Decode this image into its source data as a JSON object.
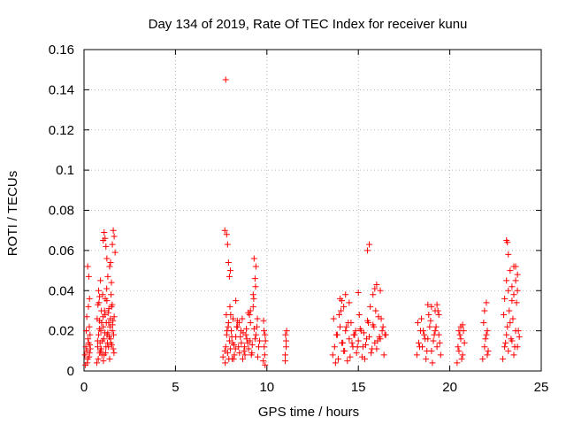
{
  "chart_data": {
    "type": "scatter",
    "title": "Day 134 of 2019, Rate Of TEC Index for receiver kunu",
    "xlabel": "GPS time / hours",
    "ylabel": "ROTI / TECUs",
    "xlim": [
      0,
      25
    ],
    "ylim": [
      0,
      0.16
    ],
    "x_ticks": [
      0,
      5,
      10,
      15,
      20,
      25
    ],
    "x_tick_labels": [
      "0",
      "5",
      "10",
      "15",
      "20",
      "25"
    ],
    "y_ticks": [
      0,
      0.02,
      0.04,
      0.06,
      0.08,
      0.1,
      0.12,
      0.14,
      0.16
    ],
    "y_tick_labels": [
      "0",
      "0.02",
      "0.04",
      "0.06",
      "0.08",
      "0.1",
      "0.12",
      "0.14",
      "0.16"
    ],
    "grid": true,
    "marker": "+",
    "marker_color": "#ff0000",
    "series": [
      {
        "x": [
          0.05,
          0.1,
          0.15,
          0.2,
          0.25,
          0.3,
          0.35,
          0.12,
          0.18,
          0.22,
          0.28,
          0.32,
          0.2,
          0.26,
          0.3,
          0.15,
          0.24,
          0.33,
          0.08,
          0.29,
          0.7,
          0.75,
          0.8,
          0.85,
          0.9,
          0.95,
          1.0,
          1.05,
          1.1,
          1.15,
          1.2,
          1.25,
          1.3,
          1.35,
          1.4,
          1.45,
          1.5,
          1.55,
          1.6,
          1.65,
          0.72,
          0.78,
          0.82,
          0.88,
          0.92,
          0.98,
          1.02,
          1.08,
          1.12,
          1.18,
          1.22,
          1.28,
          1.32,
          1.38,
          1.42,
          1.48,
          1.52,
          1.58,
          1.62,
          0.74,
          0.84,
          0.94,
          1.04,
          1.14,
          1.24,
          1.34,
          1.44,
          1.54,
          1.64,
          0.76,
          0.86,
          0.96,
          1.06,
          1.16,
          1.26,
          1.36,
          1.46,
          1.56,
          1.1,
          1.15,
          1.2,
          1.25,
          1.6,
          1.65,
          1.7,
          1.3,
          1.05,
          1.55,
          0.8,
          1.4,
          1.5,
          1.45,
          0.9,
          0.85,
          7.6,
          7.75,
          7.8,
          7.85,
          7.9,
          7.95,
          8.0,
          8.05,
          8.1,
          8.15,
          8.2,
          8.3,
          8.4,
          8.5,
          8.6,
          8.7,
          8.8,
          8.9,
          9.0,
          9.1,
          9.2,
          9.3,
          9.4,
          9.5,
          9.6,
          7.7,
          7.82,
          7.92,
          8.02,
          8.12,
          8.22,
          8.35,
          8.45,
          8.55,
          8.65,
          8.75,
          8.85,
          8.95,
          9.05,
          9.15,
          9.25,
          9.35,
          9.45,
          9.55,
          7.72,
          7.88,
          8.08,
          8.28,
          8.48,
          8.68,
          8.88,
          9.08,
          9.28,
          9.48,
          7.78,
          7.98,
          8.18,
          8.38,
          8.58,
          8.78,
          8.98,
          9.18,
          9.38,
          7.7,
          7.8,
          7.85,
          7.9,
          7.95,
          8.0,
          9.3,
          9.4,
          9.35,
          9.25,
          8.3,
          9.1,
          9.8,
          9.85,
          9.9,
          9.82,
          9.88,
          9.92,
          9.84,
          9.9,
          11.0,
          11.05,
          11.02,
          11.08,
          11.0,
          11.05,
          13.6,
          13.7,
          13.8,
          13.9,
          14.0,
          14.1,
          14.2,
          14.3,
          14.4,
          14.5,
          14.6,
          14.7,
          14.8,
          14.9,
          15.0,
          15.1,
          15.2,
          15.3,
          15.4,
          15.5,
          15.6,
          15.7,
          15.8,
          15.9,
          16.0,
          16.1,
          16.2,
          16.3,
          16.4,
          16.5,
          13.65,
          13.85,
          14.05,
          14.25,
          14.45,
          14.65,
          14.85,
          15.05,
          15.25,
          15.45,
          15.65,
          15.85,
          16.05,
          16.25,
          16.45,
          13.75,
          13.95,
          14.15,
          14.35,
          14.55,
          14.75,
          14.95,
          15.15,
          15.35,
          15.55,
          15.75,
          15.95,
          16.15,
          16.35,
          14.0,
          14.2,
          14.5,
          15.5,
          15.6,
          15.8,
          16.0,
          16.2,
          15.9,
          14.3,
          15.0,
          14.1,
          18.2,
          18.3,
          18.4,
          18.5,
          18.6,
          18.7,
          18.8,
          18.9,
          19.0,
          19.1,
          19.2,
          19.3,
          19.4,
          19.5,
          18.25,
          18.45,
          18.65,
          18.85,
          19.05,
          19.25,
          19.45,
          18.35,
          18.55,
          18.75,
          18.95,
          19.15,
          19.35,
          18.8,
          19.0,
          19.2,
          19.3,
          19.4,
          20.4,
          20.5,
          20.6,
          20.7,
          20.8,
          20.45,
          20.55,
          20.65,
          20.75,
          20.5,
          20.6,
          20.7,
          21.8,
          21.9,
          22.0,
          22.1,
          21.85,
          21.95,
          22.05,
          21.9,
          22.0,
          22.05,
          22.9,
          23.0,
          23.1,
          23.2,
          23.3,
          23.4,
          23.5,
          23.6,
          23.7,
          23.8,
          22.95,
          23.05,
          23.15,
          23.25,
          23.35,
          23.45,
          23.55,
          23.65,
          23.75,
          23.0,
          23.2,
          23.4,
          23.6,
          23.7,
          23.1,
          23.3,
          23.5,
          23.1,
          23.15,
          23.2,
          23.6,
          23.7,
          23.5,
          23.4,
          7.75
        ],
        "y": [
          0.008,
          0.012,
          0.01,
          0.006,
          0.014,
          0.009,
          0.011,
          0.02,
          0.004,
          0.016,
          0.007,
          0.013,
          0.052,
          0.047,
          0.036,
          0.027,
          0.032,
          0.018,
          0.003,
          0.022,
          0.004,
          0.012,
          0.018,
          0.025,
          0.01,
          0.03,
          0.015,
          0.022,
          0.008,
          0.028,
          0.012,
          0.035,
          0.019,
          0.024,
          0.006,
          0.016,
          0.032,
          0.02,
          0.011,
          0.027,
          0.026,
          0.006,
          0.034,
          0.014,
          0.02,
          0.008,
          0.038,
          0.016,
          0.03,
          0.009,
          0.024,
          0.014,
          0.029,
          0.017,
          0.022,
          0.038,
          0.013,
          0.025,
          0.018,
          0.015,
          0.021,
          0.011,
          0.027,
          0.019,
          0.041,
          0.012,
          0.026,
          0.033,
          0.009,
          0.033,
          0.009,
          0.024,
          0.005,
          0.036,
          0.018,
          0.031,
          0.014,
          0.023,
          0.069,
          0.066,
          0.062,
          0.056,
          0.07,
          0.067,
          0.059,
          0.047,
          0.065,
          0.063,
          0.04,
          0.052,
          0.044,
          0.054,
          0.045,
          0.037,
          0.007,
          0.012,
          0.018,
          0.009,
          0.024,
          0.015,
          0.011,
          0.02,
          0.006,
          0.026,
          0.013,
          0.017,
          0.022,
          0.009,
          0.014,
          0.019,
          0.008,
          0.016,
          0.011,
          0.024,
          0.013,
          0.021,
          0.018,
          0.007,
          0.015,
          0.01,
          0.02,
          0.006,
          0.028,
          0.014,
          0.008,
          0.022,
          0.012,
          0.017,
          0.026,
          0.01,
          0.018,
          0.014,
          0.028,
          0.008,
          0.032,
          0.016,
          0.022,
          0.012,
          0.004,
          0.022,
          0.017,
          0.011,
          0.024,
          0.006,
          0.021,
          0.015,
          0.036,
          0.026,
          0.028,
          0.032,
          0.006,
          0.025,
          0.02,
          0.012,
          0.029,
          0.009,
          0.042,
          0.07,
          0.068,
          0.063,
          0.054,
          0.047,
          0.05,
          0.056,
          0.052,
          0.046,
          0.038,
          0.035,
          0.03,
          0.005,
          0.012,
          0.018,
          0.025,
          0.008,
          0.015,
          0.02,
          0.003,
          0.005,
          0.012,
          0.018,
          0.02,
          0.008,
          0.015,
          0.008,
          0.012,
          0.018,
          0.006,
          0.022,
          0.014,
          0.01,
          0.02,
          0.005,
          0.016,
          0.024,
          0.012,
          0.018,
          0.009,
          0.015,
          0.021,
          0.007,
          0.019,
          0.013,
          0.025,
          0.017,
          0.009,
          0.023,
          0.014,
          0.011,
          0.027,
          0.016,
          0.02,
          0.008,
          0.018,
          0.026,
          0.018,
          0.03,
          0.01,
          0.024,
          0.014,
          0.02,
          0.028,
          0.012,
          0.016,
          0.032,
          0.022,
          0.015,
          0.026,
          0.018,
          0.004,
          0.028,
          0.014,
          0.022,
          0.007,
          0.018,
          0.012,
          0.02,
          0.006,
          0.024,
          0.011,
          0.03,
          0.017,
          0.022,
          0.036,
          0.032,
          0.034,
          0.06,
          0.063,
          0.038,
          0.043,
          0.04,
          0.041,
          0.038,
          0.039,
          0.035,
          0.008,
          0.014,
          0.02,
          0.012,
          0.018,
          0.006,
          0.016,
          0.022,
          0.01,
          0.015,
          0.02,
          0.012,
          0.018,
          0.008,
          0.024,
          0.026,
          0.016,
          0.028,
          0.004,
          0.022,
          0.014,
          0.012,
          0.02,
          0.01,
          0.025,
          0.018,
          0.03,
          0.033,
          0.032,
          0.03,
          0.033,
          0.028,
          0.004,
          0.01,
          0.016,
          0.008,
          0.014,
          0.012,
          0.018,
          0.006,
          0.02,
          0.02,
          0.022,
          0.023,
          0.006,
          0.012,
          0.018,
          0.01,
          0.024,
          0.016,
          0.008,
          0.03,
          0.034,
          0.02,
          0.006,
          0.012,
          0.018,
          0.01,
          0.024,
          0.015,
          0.008,
          0.02,
          0.012,
          0.017,
          0.028,
          0.014,
          0.022,
          0.03,
          0.016,
          0.026,
          0.012,
          0.034,
          0.02,
          0.036,
          0.04,
          0.042,
          0.045,
          0.04,
          0.045,
          0.05,
          0.052,
          0.065,
          0.064,
          0.058,
          0.052,
          0.048,
          0.038,
          0.035,
          0.145
        ]
      }
    ]
  }
}
